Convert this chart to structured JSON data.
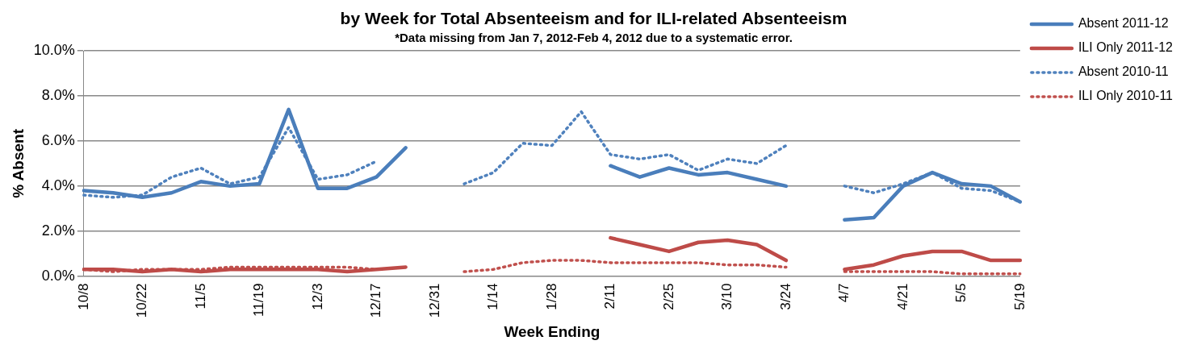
{
  "chart_data": {
    "type": "line",
    "title": "by Week for Total Absenteeism and for ILI-related Absenteeism",
    "subtitle": "*Data missing from Jan 7, 2012-Feb 4, 2012 due to a systematic error.",
    "xlabel": "Week Ending",
    "ylabel": "% Absent",
    "categories": [
      "10/8",
      null,
      "10/22",
      null,
      "11/5",
      null,
      "11/19",
      null,
      "12/3",
      null,
      "12/17",
      null,
      "12/31",
      null,
      "1/14",
      null,
      "1/28",
      null,
      "2/11",
      null,
      "2/25",
      null,
      "3/10",
      null,
      "3/24",
      null,
      "4/7",
      null,
      "4/21",
      null,
      "5/5",
      null,
      "5/19"
    ],
    "series": [
      {
        "name": "Absent 2011-12",
        "color": "#4a7ebb",
        "line_style": "solid",
        "values": [
          3.8,
          3.7,
          3.5,
          3.7,
          4.2,
          4.0,
          4.1,
          7.4,
          3.9,
          3.9,
          4.4,
          5.7,
          null,
          null,
          null,
          null,
          null,
          null,
          4.9,
          4.4,
          4.8,
          4.5,
          4.6,
          4.3,
          4.0,
          null,
          2.5,
          2.6,
          4.0,
          4.6,
          4.1,
          4.0,
          3.3
        ]
      },
      {
        "name": "ILI Only 2011-12",
        "color": "#be4b48",
        "line_style": "solid",
        "values": [
          0.3,
          0.3,
          0.2,
          0.3,
          0.2,
          0.3,
          0.3,
          0.3,
          0.3,
          0.2,
          0.3,
          0.4,
          null,
          null,
          null,
          null,
          null,
          null,
          1.7,
          1.4,
          1.1,
          1.5,
          1.6,
          1.4,
          0.7,
          null,
          0.3,
          0.5,
          0.9,
          1.1,
          1.1,
          0.7,
          0.7
        ]
      },
      {
        "name": "Absent 2010-11",
        "color": "#4f81bd",
        "line_style": "dotted",
        "values": [
          3.6,
          3.5,
          3.6,
          4.4,
          4.8,
          4.1,
          4.4,
          6.6,
          4.3,
          4.5,
          5.1,
          null,
          null,
          4.1,
          4.6,
          5.9,
          5.8,
          7.3,
          5.4,
          5.2,
          5.4,
          4.7,
          5.2,
          5.0,
          5.8,
          null,
          4.0,
          3.7,
          4.1,
          4.6,
          3.9,
          3.8,
          3.3
        ]
      },
      {
        "name": "ILI Only 2010-11",
        "color": "#c0504d",
        "line_style": "dotted",
        "values": [
          0.3,
          0.2,
          0.3,
          0.3,
          0.3,
          0.4,
          0.4,
          0.4,
          0.4,
          0.4,
          0.3,
          null,
          null,
          0.2,
          0.3,
          0.6,
          0.7,
          0.7,
          0.6,
          0.6,
          0.6,
          0.6,
          0.5,
          0.5,
          0.4,
          null,
          0.2,
          0.2,
          0.2,
          0.2,
          0.1,
          0.1,
          0.1
        ]
      }
    ],
    "ylim": [
      0,
      10
    ],
    "yticks": [
      {
        "value": 0,
        "label": "0.0%"
      },
      {
        "value": 2,
        "label": "2.0%"
      },
      {
        "value": 4,
        "label": "4.0%"
      },
      {
        "value": 6,
        "label": "6.0%"
      },
      {
        "value": 8,
        "label": "8.0%"
      },
      {
        "value": 10,
        "label": "10.0%"
      }
    ],
    "grid": "y",
    "legend": "top right",
    "marker": "none"
  }
}
